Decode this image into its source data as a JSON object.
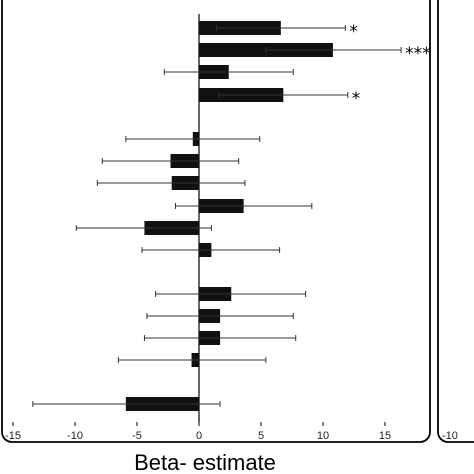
{
  "chart_data": {
    "type": "bar",
    "orientation": "horizontal",
    "xlabel": "Beta- estimate",
    "ylabel": "",
    "xlim": [
      -15.5,
      18.5
    ],
    "xticks": [
      -15,
      -10,
      -5,
      0,
      5,
      10,
      15
    ],
    "xtick_labels": [
      "-15",
      "-10",
      "-5",
      "0",
      "5",
      "10",
      "15"
    ],
    "grid": false,
    "error_bars": true,
    "bar_color": "#111111",
    "bars": [
      {
        "value": 6.6,
        "err_low": 1.4,
        "err_high": 11.8,
        "sig": "*"
      },
      {
        "value": 10.8,
        "err_low": 5.4,
        "err_high": 16.3,
        "sig": "***"
      },
      {
        "value": 2.4,
        "err_low": -2.8,
        "err_high": 7.6,
        "sig": ""
      },
      {
        "value": 6.8,
        "err_low": 1.6,
        "err_high": 12.0,
        "sig": "*"
      },
      {
        "value": -0.5,
        "err_low": -5.9,
        "err_high": 4.9,
        "sig": ""
      },
      {
        "value": -2.3,
        "err_low": -7.8,
        "err_high": 3.2,
        "sig": ""
      },
      {
        "value": -2.2,
        "err_low": -8.2,
        "err_high": 3.7,
        "sig": ""
      },
      {
        "value": 3.6,
        "err_low": -1.9,
        "err_high": 9.1,
        "sig": ""
      },
      {
        "value": -4.4,
        "err_low": -9.9,
        "err_high": 1.0,
        "sig": ""
      },
      {
        "value": 1.0,
        "err_low": -4.6,
        "err_high": 6.5,
        "sig": ""
      },
      {
        "value": 2.6,
        "err_low": -3.5,
        "err_high": 8.6,
        "sig": ""
      },
      {
        "value": 1.7,
        "err_low": -4.2,
        "err_high": 7.6,
        "sig": ""
      },
      {
        "value": 1.7,
        "err_low": -4.4,
        "err_high": 7.8,
        "sig": ""
      },
      {
        "value": -0.6,
        "err_low": -6.5,
        "err_high": 5.4,
        "sig": ""
      },
      {
        "value": -5.9,
        "err_low": -13.4,
        "err_high": 1.7,
        "sig": ""
      }
    ]
  },
  "second_panel": {
    "tick_label": "-10"
  }
}
